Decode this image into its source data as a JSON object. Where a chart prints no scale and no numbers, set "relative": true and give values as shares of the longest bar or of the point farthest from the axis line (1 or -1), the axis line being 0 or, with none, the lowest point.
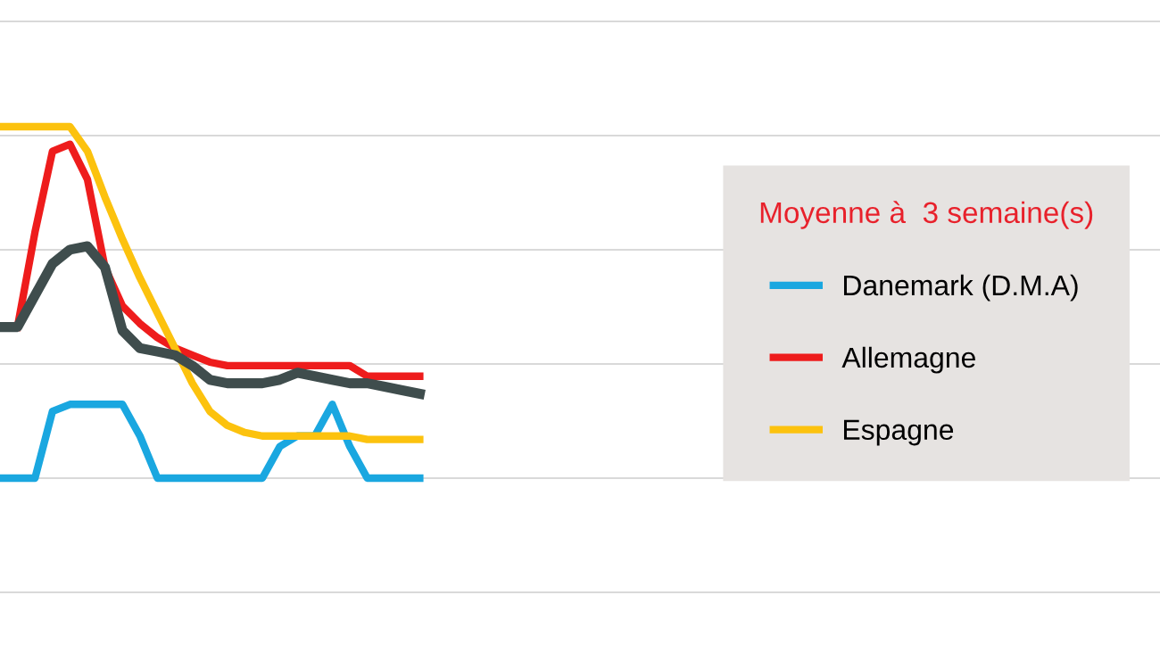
{
  "chart_data": {
    "type": "line",
    "relative": true,
    "grid": "y",
    "legend": "right",
    "legend_title": "Moyenne à  3 semaine(s)",
    "categories": [
      null,
      null,
      null,
      null,
      null,
      null,
      null,
      null,
      null,
      null,
      null,
      null,
      null,
      null,
      null,
      null,
      null,
      null,
      null,
      null,
      null,
      null,
      null,
      null,
      null
    ],
    "series": [
      {
        "name": "Danemark (D.M.A)",
        "color": "#1aa7e0",
        "values": [
          0,
          0,
          0,
          0.19,
          0.21,
          0.21,
          0.21,
          0.21,
          0.12,
          0,
          0,
          0,
          0,
          0,
          0,
          0,
          0.09,
          0.12,
          0.12,
          0.21,
          0.09,
          0,
          0,
          0,
          0
        ]
      },
      {
        "name": "Allemagne",
        "color": "#ee1c1c",
        "values": [
          null,
          0.43,
          0.7,
          0.93,
          0.95,
          0.85,
          0.6,
          0.49,
          0.44,
          0.4,
          0.37,
          0.35,
          0.33,
          0.32,
          0.32,
          0.32,
          0.32,
          0.32,
          0.32,
          0.32,
          0.32,
          0.29,
          0.29,
          0.29,
          0.29
        ]
      },
      {
        "name": "Espagne",
        "color": "#fcc20e",
        "values": [
          1,
          1,
          1,
          1,
          1,
          0.93,
          0.8,
          0.68,
          0.57,
          0.47,
          0.37,
          0.27,
          0.19,
          0.15,
          0.13,
          0.12,
          0.12,
          0.12,
          0.12,
          0.12,
          0.12,
          0.11,
          0.11,
          0.11,
          0.11
        ]
      },
      {
        "color": "#3f4d4d",
        "values": [
          0.43,
          0.43,
          0.52,
          0.61,
          0.65,
          0.66,
          0.6,
          0.42,
          0.37,
          0.36,
          0.35,
          0.32,
          0.28,
          0.27,
          0.27,
          0.27,
          0.28,
          0.3,
          0.29,
          0.28,
          0.27,
          0.27,
          0.26,
          0.25,
          0.24
        ]
      }
    ]
  }
}
